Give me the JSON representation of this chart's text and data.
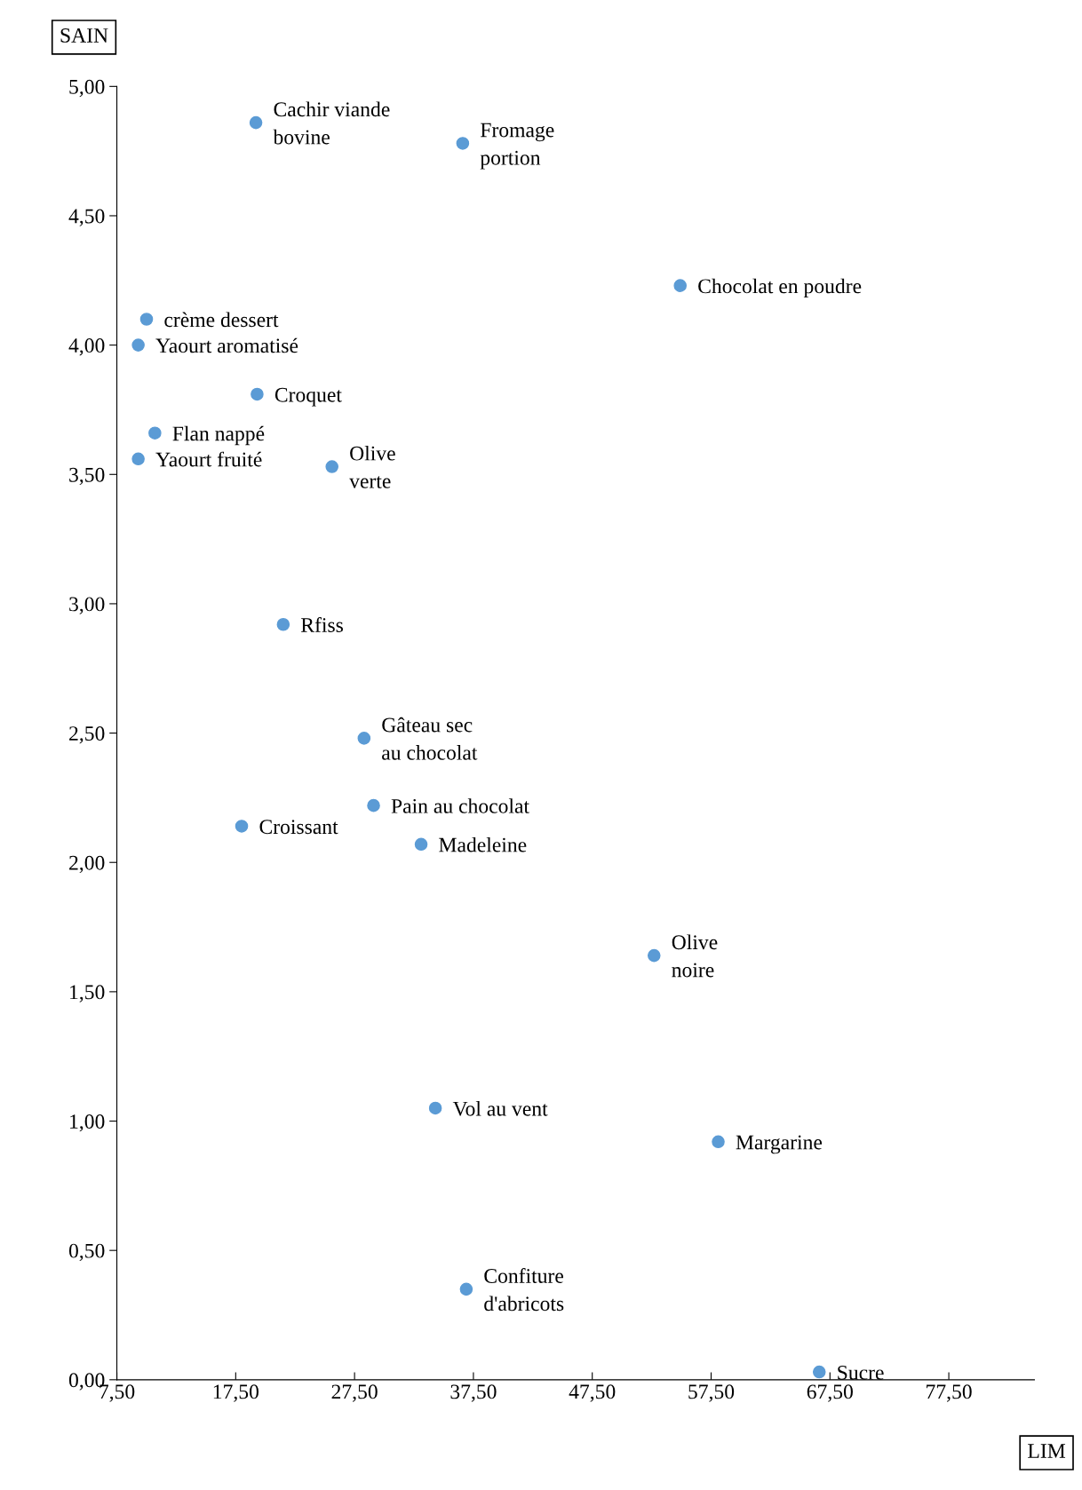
{
  "chart_data": {
    "type": "scatter",
    "xlabel": "LIM",
    "ylabel": "SAIN",
    "marker": "circle",
    "grid": false,
    "legend": false,
    "xlim": [
      7.5,
      84.7
    ],
    "ylim": [
      0,
      5
    ],
    "xticks": [
      {
        "value": 7.5,
        "label": "7,50"
      },
      {
        "value": 17.5,
        "label": "17,50"
      },
      {
        "value": 27.5,
        "label": "27,50"
      },
      {
        "value": 37.5,
        "label": "37,50"
      },
      {
        "value": 47.5,
        "label": "47,50"
      },
      {
        "value": 57.5,
        "label": "57,50"
      },
      {
        "value": 67.5,
        "label": "67,50"
      },
      {
        "value": 77.5,
        "label": "77,50"
      }
    ],
    "yticks": [
      {
        "value": 0,
        "label": "0,00"
      },
      {
        "value": 0.5,
        "label": "0,50"
      },
      {
        "value": 1,
        "label": "1,00"
      },
      {
        "value": 1.5,
        "label": "1,50"
      },
      {
        "value": 2,
        "label": "2,00"
      },
      {
        "value": 2.5,
        "label": "2,50"
      },
      {
        "value": 3,
        "label": "3,00"
      },
      {
        "value": 3.5,
        "label": "3,50"
      },
      {
        "value": 4,
        "label": "4,00"
      },
      {
        "value": 4.5,
        "label": "4,50"
      },
      {
        "value": 5,
        "label": "5,00"
      }
    ],
    "series": [
      {
        "color": "#5b9bd5",
        "x": [
          19.2,
          36.6,
          54.9,
          10.0,
          9.3,
          19.3,
          10.7,
          9.3,
          25.6,
          21.5,
          28.3,
          29.1,
          18.0,
          33.1,
          52.7,
          34.3,
          58.1,
          36.9,
          66.6
        ],
        "values": [
          4.86,
          4.78,
          4.23,
          4.1,
          4.0,
          3.81,
          3.66,
          3.56,
          3.53,
          2.92,
          2.48,
          2.22,
          2.14,
          2.07,
          1.64,
          1.05,
          0.92,
          0.35,
          0.03
        ]
      }
    ],
    "annotations": [
      {
        "text": "Cachir viande\nbovine",
        "x": 19.2,
        "y": 4.86
      },
      {
        "text": "Fromage\nportion",
        "x": 36.6,
        "y": 4.78
      },
      {
        "text": "Chocolat en poudre",
        "x": 54.9,
        "y": 4.23
      },
      {
        "text": "crème dessert",
        "x": 10.0,
        "y": 4.1
      },
      {
        "text": "Yaourt aromatisé",
        "x": 9.3,
        "y": 4.0
      },
      {
        "text": "Croquet",
        "x": 19.3,
        "y": 3.81
      },
      {
        "text": "Flan nappé",
        "x": 10.7,
        "y": 3.66
      },
      {
        "text": "Yaourt fruité",
        "x": 9.3,
        "y": 3.56
      },
      {
        "text": "Olive\nverte",
        "x": 25.6,
        "y": 3.53
      },
      {
        "text": "Rfiss",
        "x": 21.5,
        "y": 2.92
      },
      {
        "text": "Gâteau sec\nau chocolat",
        "x": 28.3,
        "y": 2.48
      },
      {
        "text": "Pain au chocolat",
        "x": 29.1,
        "y": 2.22
      },
      {
        "text": "Croissant",
        "x": 18.0,
        "y": 2.14
      },
      {
        "text": "Madeleine",
        "x": 33.1,
        "y": 2.07
      },
      {
        "text": "Olive\nnoire",
        "x": 52.7,
        "y": 1.64
      },
      {
        "text": "Vol au vent",
        "x": 34.3,
        "y": 1.05
      },
      {
        "text": "Margarine",
        "x": 58.1,
        "y": 0.92
      },
      {
        "text": "Confiture\nd'abricots",
        "x": 36.9,
        "y": 0.35
      },
      {
        "text": "Sucre",
        "x": 66.6,
        "y": 0.03
      }
    ]
  }
}
